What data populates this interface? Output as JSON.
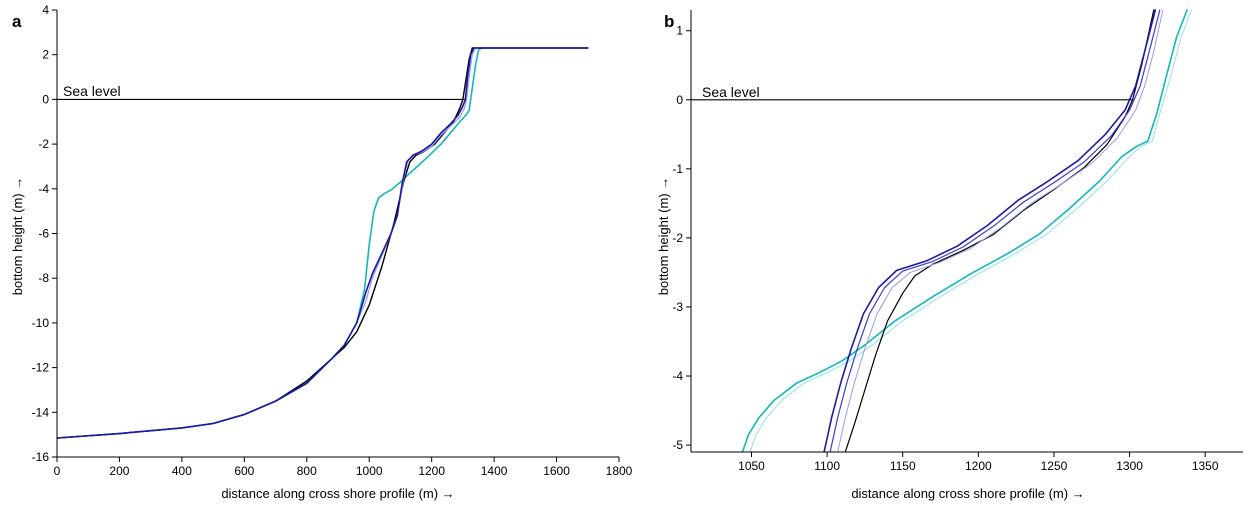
{
  "colors": {
    "black": "#000000",
    "blue_dark": "#1a1aa6",
    "blue": "#3b3bd6",
    "blue_light": "#9a9af0",
    "cyan": "#14b8b8",
    "cyan_light": "#8fe6e6"
  },
  "chart_data": [
    {
      "type": "line",
      "panel_label": "a",
      "title": "",
      "xlabel": "distance along cross shore profile (m) →",
      "ylabel": "bottom height (m) →",
      "xlim": [
        0,
        1800
      ],
      "ylim": [
        -16,
        4
      ],
      "x_ticks": [
        0,
        200,
        400,
        600,
        800,
        1000,
        1200,
        1400,
        1600,
        1800
      ],
      "y_ticks": [
        4,
        2,
        0,
        -2,
        -4,
        -6,
        -8,
        -10,
        -12,
        -14,
        -16
      ],
      "grid": false,
      "annotations": [
        {
          "text": "Sea level",
          "x": 30,
          "y": 0.1
        }
      ],
      "sea_level": {
        "y": 0,
        "x_start": 0,
        "x_end": 1310
      },
      "series": [
        {
          "color": "#14b8b8",
          "width": 1.6,
          "points": [
            [
              0,
              -15.15
            ],
            [
              200,
              -14.95
            ],
            [
              400,
              -14.7
            ],
            [
              500,
              -14.5
            ],
            [
              600,
              -14.1
            ],
            [
              700,
              -13.5
            ],
            [
              800,
              -12.7
            ],
            [
              880,
              -11.6
            ],
            [
              920,
              -11.0
            ],
            [
              960,
              -10.0
            ],
            [
              985,
              -8.5
            ],
            [
              1000,
              -6.5
            ],
            [
              1015,
              -5.0
            ],
            [
              1030,
              -4.4
            ],
            [
              1050,
              -4.2
            ],
            [
              1070,
              -4.05
            ],
            [
              1100,
              -3.7
            ],
            [
              1130,
              -3.3
            ],
            [
              1170,
              -2.8
            ],
            [
              1200,
              -2.4
            ],
            [
              1230,
              -2.0
            ],
            [
              1260,
              -1.5
            ],
            [
              1290,
              -1.0
            ],
            [
              1310,
              -0.7
            ],
            [
              1320,
              -0.5
            ],
            [
              1330,
              0.5
            ],
            [
              1340,
              1.5
            ],
            [
              1350,
              2.2
            ],
            [
              1360,
              2.3
            ],
            [
              1700,
              2.3
            ]
          ]
        },
        {
          "color": "#000000",
          "width": 1.4,
          "points": [
            [
              0,
              -15.15
            ],
            [
              200,
              -14.95
            ],
            [
              400,
              -14.7
            ],
            [
              500,
              -14.5
            ],
            [
              600,
              -14.1
            ],
            [
              700,
              -13.5
            ],
            [
              800,
              -12.6
            ],
            [
              880,
              -11.6
            ],
            [
              920,
              -11.1
            ],
            [
              960,
              -10.4
            ],
            [
              1000,
              -9.2
            ],
            [
              1040,
              -7.5
            ],
            [
              1080,
              -5.5
            ],
            [
              1110,
              -3.7
            ],
            [
              1130,
              -2.8
            ],
            [
              1150,
              -2.5
            ],
            [
              1180,
              -2.3
            ],
            [
              1210,
              -2.0
            ],
            [
              1240,
              -1.5
            ],
            [
              1270,
              -1.0
            ],
            [
              1290,
              -0.4
            ],
            [
              1300,
              0.0
            ],
            [
              1310,
              0.9
            ],
            [
              1320,
              1.8
            ],
            [
              1330,
              2.3
            ],
            [
              1700,
              2.3
            ]
          ]
        },
        {
          "color": "#9a9af0",
          "width": 1.2,
          "points": [
            [
              0,
              -15.15
            ],
            [
              200,
              -14.95
            ],
            [
              400,
              -14.7
            ],
            [
              500,
              -14.5
            ],
            [
              600,
              -14.1
            ],
            [
              700,
              -13.5
            ],
            [
              800,
              -12.7
            ],
            [
              880,
              -11.6
            ],
            [
              920,
              -11.0
            ],
            [
              960,
              -10.0
            ],
            [
              990,
              -9.0
            ],
            [
              1010,
              -8.0
            ],
            [
              1040,
              -7.0
            ],
            [
              1070,
              -6.0
            ],
            [
              1090,
              -5.2
            ],
            [
              1110,
              -3.6
            ],
            [
              1125,
              -2.7
            ],
            [
              1150,
              -2.45
            ],
            [
              1180,
              -2.3
            ],
            [
              1200,
              -2.1
            ],
            [
              1230,
              -1.6
            ],
            [
              1260,
              -1.2
            ],
            [
              1290,
              -0.8
            ],
            [
              1305,
              -0.4
            ],
            [
              1312,
              0.0
            ],
            [
              1320,
              1.0
            ],
            [
              1330,
              2.0
            ],
            [
              1340,
              2.3
            ],
            [
              1700,
              2.3
            ]
          ]
        },
        {
          "color": "#1a1aa6",
          "width": 1.6,
          "points": [
            [
              0,
              -15.15
            ],
            [
              200,
              -14.95
            ],
            [
              400,
              -14.7
            ],
            [
              500,
              -14.5
            ],
            [
              600,
              -14.1
            ],
            [
              700,
              -13.5
            ],
            [
              800,
              -12.7
            ],
            [
              880,
              -11.6
            ],
            [
              920,
              -11.0
            ],
            [
              960,
              -10.0
            ],
            [
              990,
              -8.6
            ],
            [
              1010,
              -7.8
            ],
            [
              1040,
              -6.9
            ],
            [
              1070,
              -6.0
            ],
            [
              1090,
              -5.2
            ],
            [
              1105,
              -3.8
            ],
            [
              1120,
              -2.8
            ],
            [
              1140,
              -2.5
            ],
            [
              1170,
              -2.3
            ],
            [
              1200,
              -2.0
            ],
            [
              1230,
              -1.5
            ],
            [
              1260,
              -1.1
            ],
            [
              1285,
              -0.7
            ],
            [
              1300,
              -0.3
            ],
            [
              1308,
              0.0
            ],
            [
              1315,
              1.0
            ],
            [
              1325,
              2.0
            ],
            [
              1335,
              2.3
            ],
            [
              1700,
              2.3
            ]
          ]
        }
      ]
    },
    {
      "type": "line",
      "panel_label": "b",
      "title": "",
      "xlabel": "distance along cross shore profile (m) →",
      "ylabel": "bottom height (m) →",
      "xlim": [
        1010,
        1375
      ],
      "ylim": [
        -5.1,
        1.3
      ],
      "x_ticks": [
        1050,
        1100,
        1150,
        1200,
        1250,
        1300,
        1350
      ],
      "y_ticks": [
        1,
        0,
        -1,
        -2,
        -3,
        -4,
        -5
      ],
      "grid": false,
      "annotations": [
        {
          "text": "Sea level",
          "x": 1013,
          "y": 0.05
        }
      ],
      "sea_level": {
        "y": 0,
        "x_start": 1010,
        "x_end": 1302
      },
      "series": [
        {
          "color": "#8fe6e6",
          "width": 1.0,
          "points": [
            [
              1049,
              -5.1
            ],
            [
              1053,
              -4.85
            ],
            [
              1060,
              -4.6
            ],
            [
              1070,
              -4.35
            ],
            [
              1085,
              -4.1
            ],
            [
              1100,
              -3.95
            ],
            [
              1115,
              -3.78
            ],
            [
              1130,
              -3.55
            ],
            [
              1150,
              -3.2
            ],
            [
              1175,
              -2.85
            ],
            [
              1200,
              -2.52
            ],
            [
              1225,
              -2.22
            ],
            [
              1245,
              -1.95
            ],
            [
              1265,
              -1.58
            ],
            [
              1285,
              -1.18
            ],
            [
              1300,
              -0.82
            ],
            [
              1308,
              -0.67
            ],
            [
              1315,
              -0.6
            ],
            [
              1320,
              -0.2
            ],
            [
              1328,
              0.4
            ],
            [
              1334,
              0.9
            ],
            [
              1341,
              1.3
            ]
          ]
        },
        {
          "color": "#14b8b8",
          "width": 1.6,
          "points": [
            [
              1044,
              -5.1
            ],
            [
              1048,
              -4.85
            ],
            [
              1055,
              -4.6
            ],
            [
              1065,
              -4.35
            ],
            [
              1080,
              -4.1
            ],
            [
              1095,
              -3.95
            ],
            [
              1110,
              -3.78
            ],
            [
              1125,
              -3.55
            ],
            [
              1145,
              -3.2
            ],
            [
              1170,
              -2.85
            ],
            [
              1195,
              -2.52
            ],
            [
              1220,
              -2.22
            ],
            [
              1240,
              -1.95
            ],
            [
              1260,
              -1.58
            ],
            [
              1280,
              -1.18
            ],
            [
              1295,
              -0.82
            ],
            [
              1305,
              -0.67
            ],
            [
              1312,
              -0.6
            ],
            [
              1318,
              -0.2
            ],
            [
              1325,
              0.4
            ],
            [
              1331,
              0.9
            ],
            [
              1338,
              1.3
            ]
          ]
        },
        {
          "color": "#000000",
          "width": 1.2,
          "points": [
            [
              1112,
              -5.1
            ],
            [
              1118,
              -4.7
            ],
            [
              1125,
              -4.2
            ],
            [
              1132,
              -3.7
            ],
            [
              1140,
              -3.2
            ],
            [
              1150,
              -2.8
            ],
            [
              1158,
              -2.55
            ],
            [
              1170,
              -2.38
            ],
            [
              1190,
              -2.18
            ],
            [
              1210,
              -1.95
            ],
            [
              1230,
              -1.6
            ],
            [
              1250,
              -1.3
            ],
            [
              1270,
              -0.98
            ],
            [
              1285,
              -0.65
            ],
            [
              1297,
              -0.25
            ],
            [
              1302,
              0.0
            ],
            [
              1308,
              0.5
            ],
            [
              1313,
              1.0
            ],
            [
              1316,
              1.3
            ]
          ]
        },
        {
          "color": "#9a9af0",
          "width": 1.0,
          "points": [
            [
              1107,
              -5.1
            ],
            [
              1112,
              -4.6
            ],
            [
              1118,
              -4.1
            ],
            [
              1125,
              -3.6
            ],
            [
              1133,
              -3.1
            ],
            [
              1143,
              -2.72
            ],
            [
              1155,
              -2.5
            ],
            [
              1175,
              -2.35
            ],
            [
              1195,
              -2.15
            ],
            [
              1215,
              -1.85
            ],
            [
              1235,
              -1.5
            ],
            [
              1255,
              -1.22
            ],
            [
              1275,
              -0.92
            ],
            [
              1292,
              -0.55
            ],
            [
              1304,
              -0.15
            ],
            [
              1310,
              0.2
            ],
            [
              1316,
              0.7
            ],
            [
              1322,
              1.3
            ]
          ]
        },
        {
          "color": "#3b3bd6",
          "width": 1.2,
          "points": [
            [
              1102,
              -5.1
            ],
            [
              1107,
              -4.6
            ],
            [
              1113,
              -4.1
            ],
            [
              1120,
              -3.6
            ],
            [
              1128,
              -3.1
            ],
            [
              1138,
              -2.72
            ],
            [
              1150,
              -2.48
            ],
            [
              1170,
              -2.34
            ],
            [
              1190,
              -2.13
            ],
            [
              1210,
              -1.83
            ],
            [
              1230,
              -1.48
            ],
            [
              1250,
              -1.2
            ],
            [
              1270,
              -0.9
            ],
            [
              1288,
              -0.52
            ],
            [
              1300,
              -0.15
            ],
            [
              1307,
              0.2
            ],
            [
              1313,
              0.7
            ],
            [
              1320,
              1.3
            ]
          ]
        },
        {
          "color": "#1a1aa6",
          "width": 1.6,
          "points": [
            [
              1098,
              -5.1
            ],
            [
              1103,
              -4.6
            ],
            [
              1109,
              -4.1
            ],
            [
              1116,
              -3.6
            ],
            [
              1124,
              -3.1
            ],
            [
              1134,
              -2.72
            ],
            [
              1146,
              -2.47
            ],
            [
              1166,
              -2.33
            ],
            [
              1186,
              -2.12
            ],
            [
              1206,
              -1.82
            ],
            [
              1226,
              -1.46
            ],
            [
              1246,
              -1.18
            ],
            [
              1266,
              -0.88
            ],
            [
              1284,
              -0.5
            ],
            [
              1297,
              -0.15
            ],
            [
              1304,
              0.2
            ],
            [
              1310,
              0.7
            ],
            [
              1317,
              1.3
            ]
          ]
        }
      ]
    }
  ]
}
